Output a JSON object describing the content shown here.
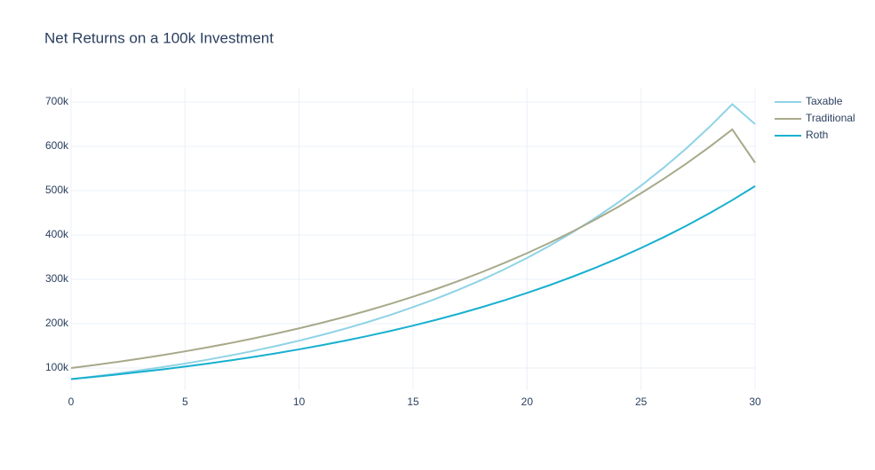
{
  "chart_data": {
    "type": "line",
    "title": "Net Returns on a 100k Investment",
    "x": [
      0,
      1,
      2,
      3,
      4,
      5,
      6,
      7,
      8,
      9,
      10,
      11,
      12,
      13,
      14,
      15,
      16,
      17,
      18,
      19,
      20,
      21,
      22,
      23,
      24,
      25,
      26,
      27,
      28,
      29,
      30
    ],
    "series": [
      {
        "name": "Taxable",
        "color": "#8fd3e6",
        "values": [
          75000,
          81000,
          87400,
          94400,
          102000,
          110100,
          118900,
          128400,
          138600,
          149700,
          161600,
          174500,
          188400,
          203500,
          219700,
          237300,
          256200,
          276600,
          298700,
          322500,
          348300,
          376100,
          406100,
          438500,
          473500,
          511300,
          552100,
          596100,
          643700,
          695000,
          650000
        ]
      },
      {
        "name": "Traditional",
        "color": "#a8a98a",
        "values": [
          100000,
          106600,
          113600,
          121100,
          129100,
          137600,
          146700,
          156400,
          166800,
          177800,
          189500,
          202000,
          215300,
          229500,
          244700,
          260800,
          278000,
          296400,
          316000,
          336800,
          359000,
          382700,
          408000,
          434900,
          463600,
          494200,
          526800,
          561600,
          598700,
          638200,
          563000
        ]
      },
      {
        "name": "Roth",
        "color": "#17b0cf",
        "values": [
          75000,
          80000,
          85200,
          90900,
          96800,
          103200,
          110100,
          117300,
          125100,
          133300,
          142100,
          151500,
          161500,
          172100,
          183500,
          195600,
          208500,
          222300,
          237000,
          252600,
          269300,
          287000,
          306000,
          326200,
          347700,
          370700,
          395100,
          421200,
          449000,
          478600,
          510200
        ]
      }
    ],
    "xlim": [
      0,
      30
    ],
    "xticks": [
      0,
      5,
      10,
      15,
      20,
      25,
      30
    ],
    "ylim": [
      50000,
      730000
    ],
    "yticks": [
      {
        "value": 100000,
        "label": "100k"
      },
      {
        "value": 200000,
        "label": "200k"
      },
      {
        "value": 300000,
        "label": "300k"
      },
      {
        "value": 400000,
        "label": "400k"
      },
      {
        "value": 500000,
        "label": "500k"
      },
      {
        "value": 600000,
        "label": "600k"
      },
      {
        "value": 700000,
        "label": "700k"
      }
    ],
    "grid": true,
    "legend": "top-right"
  }
}
